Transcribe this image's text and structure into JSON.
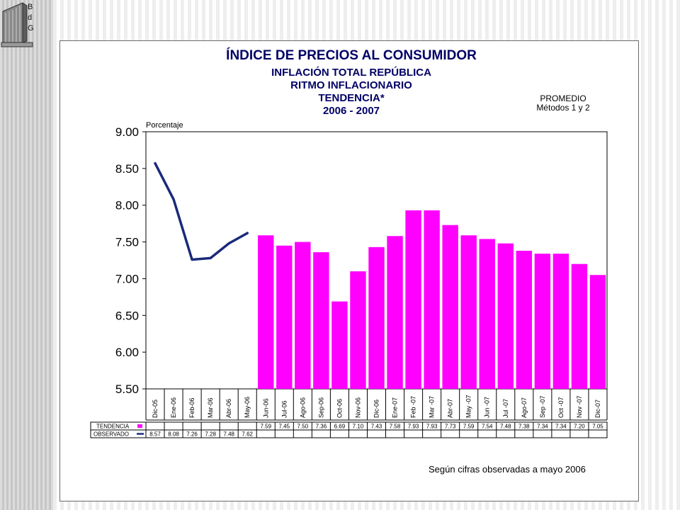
{
  "logo": {
    "letters": [
      "B",
      "d",
      "G"
    ]
  },
  "header": {
    "title": "ÍNDICE DE PRECIOS AL CONSUMIDOR",
    "subtitles": [
      "INFLACIÓN TOTAL REPÚBLICA",
      "RITMO INFLACIONARIO",
      "TENDENCIA*",
      "2006 - 2007"
    ]
  },
  "promedio": {
    "line1": "PROMEDIO",
    "line2": "Métodos 1 y 2"
  },
  "footnote": "Según cifras observadas a mayo 2006",
  "colors": {
    "bar": "#ff00ff",
    "line": "#1a2a7a",
    "title": "#000066"
  },
  "chart_data": {
    "type": "bar",
    "ylabel": "Porcentaje",
    "ylim": [
      5.5,
      9.0
    ],
    "yticks": [
      "9.00",
      "8.50",
      "8.00",
      "7.50",
      "7.00",
      "6.50",
      "6.00",
      "5.50"
    ],
    "categories": [
      "Dic-05",
      "Ene-06",
      "Feb-06",
      "Mar-06",
      "Abr-06",
      "May-06",
      "Jun-06",
      "Jul-06",
      "Ago-06",
      "Sep-06",
      "Oct-06",
      "Nov-06",
      "Dic-06",
      "Ene-07",
      "Feb -07",
      "Mar -07",
      "Abr-07",
      "May -07",
      "Jun -07",
      "Jul -07",
      "Ago-07",
      "Sep -07",
      "Oct -07",
      "Nov -07",
      "Dic-07"
    ],
    "series": [
      {
        "name": "TENDENCIA",
        "type": "bar",
        "values": [
          null,
          null,
          null,
          null,
          null,
          null,
          7.59,
          7.45,
          7.5,
          7.36,
          6.69,
          7.1,
          7.43,
          7.58,
          7.93,
          7.93,
          7.73,
          7.59,
          7.54,
          7.48,
          7.38,
          7.34,
          7.34,
          7.2,
          7.05
        ],
        "labels": [
          "",
          "",
          "",
          "",
          "",
          "",
          "7.59",
          "7.45",
          "7.50",
          "7.36",
          "6.69",
          "7.10",
          "7.43",
          "7.58",
          "7.93",
          "7.93",
          "7.73",
          "7.59",
          "7.54",
          "7.48",
          "7.38",
          "7.34",
          "7.34",
          "7.20",
          "7.05"
        ]
      },
      {
        "name": "OBSERVADO",
        "type": "line",
        "values": [
          8.57,
          8.08,
          7.26,
          7.28,
          7.48,
          7.62,
          null,
          null,
          null,
          null,
          null,
          null,
          null,
          null,
          null,
          null,
          null,
          null,
          null,
          null,
          null,
          null,
          null,
          null,
          null
        ],
        "labels": [
          "8.57",
          "8.08",
          "7.26",
          "7.28",
          "7.48",
          "7.62",
          "",
          "",
          "",
          "",
          "",
          "",
          "",
          "",
          "",
          "",
          "",
          "",
          "",
          "",
          "",
          "",
          "",
          "",
          ""
        ]
      }
    ]
  }
}
